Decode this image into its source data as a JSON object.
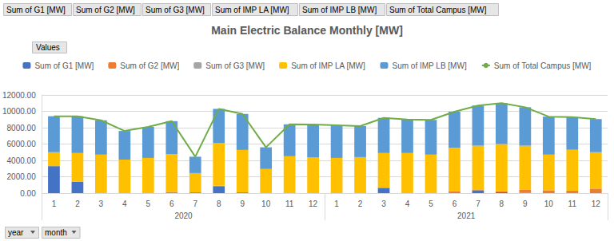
{
  "chart_data": {
    "type": "bar",
    "title": "Main Electric Balance Monthly [MW]",
    "categories": [
      1,
      2,
      3,
      4,
      5,
      6,
      7,
      8,
      9,
      10,
      11,
      12,
      1,
      2,
      3,
      4,
      5,
      6,
      7,
      8,
      9,
      10,
      11,
      12
    ],
    "groups": [
      "2020",
      "2021"
    ],
    "annotations": [
      "Values",
      "year",
      "month"
    ],
    "stacked": true,
    "grid": true,
    "legend": "top",
    "ylim": [
      0,
      12000
    ],
    "yticks": [
      {
        "value": 0,
        "label": "0.00"
      },
      {
        "value": 2000,
        "label": "2000.00"
      },
      {
        "value": 4000,
        "label": "4000.00"
      },
      {
        "value": 6000,
        "label": "6000.00"
      },
      {
        "value": 8000,
        "label": "8000.00"
      },
      {
        "value": 10000,
        "label": "10000.00"
      },
      {
        "value": 12000,
        "label": "12000.00"
      }
    ],
    "series": [
      {
        "name": "Sum of G1 [MW]",
        "type": "bar",
        "color": "#4472C4",
        "values": [
          3300,
          1400,
          0,
          0,
          0,
          0,
          0,
          850,
          80,
          0,
          0,
          0,
          0,
          0,
          650,
          0,
          0,
          0,
          350,
          100,
          50,
          0,
          0,
          0
        ]
      },
      {
        "name": "Sum of G2 [MW]",
        "type": "bar",
        "color": "#ED7D31",
        "values": [
          0,
          0,
          0,
          0,
          0,
          150,
          100,
          50,
          0,
          0,
          60,
          0,
          0,
          0,
          0,
          0,
          0,
          200,
          100,
          150,
          350,
          350,
          300,
          550
        ]
      },
      {
        "name": "Sum of G3 [MW]",
        "type": "bar",
        "color": "#A5A5A5",
        "values": [
          0,
          0,
          0,
          0,
          0,
          0,
          0,
          0,
          0,
          0,
          0,
          0,
          0,
          0,
          0,
          0,
          0,
          0,
          0,
          0,
          0,
          0,
          0,
          0
        ]
      },
      {
        "name": "Sum of IMP LA [MW]",
        "type": "bar",
        "color": "#FFC000",
        "values": [
          1700,
          3500,
          4700,
          4100,
          4300,
          4600,
          2350,
          5200,
          5200,
          2950,
          4450,
          4350,
          4300,
          4400,
          4250,
          4900,
          4700,
          5350,
          5350,
          5750,
          5400,
          4350,
          5000,
          4450
        ]
      },
      {
        "name": "Sum of IMP LB [MW]",
        "type": "bar",
        "color": "#5B9BD5",
        "values": [
          4400,
          4500,
          4200,
          3500,
          3800,
          4050,
          2000,
          4200,
          4400,
          2650,
          3900,
          4050,
          4000,
          3800,
          4300,
          4100,
          4250,
          4400,
          4900,
          5000,
          4700,
          4650,
          4000,
          4050
        ]
      },
      {
        "name": "Sum of Total Campus [MW]",
        "type": "line",
        "color": "#70AD47",
        "values": [
          9400,
          9400,
          8900,
          7600,
          8100,
          8800,
          4450,
          10300,
          9680,
          5600,
          8410,
          8400,
          8300,
          8200,
          9200,
          9000,
          8950,
          9950,
          10700,
          11000,
          10500,
          9350,
          9300,
          9050
        ]
      }
    ]
  }
}
